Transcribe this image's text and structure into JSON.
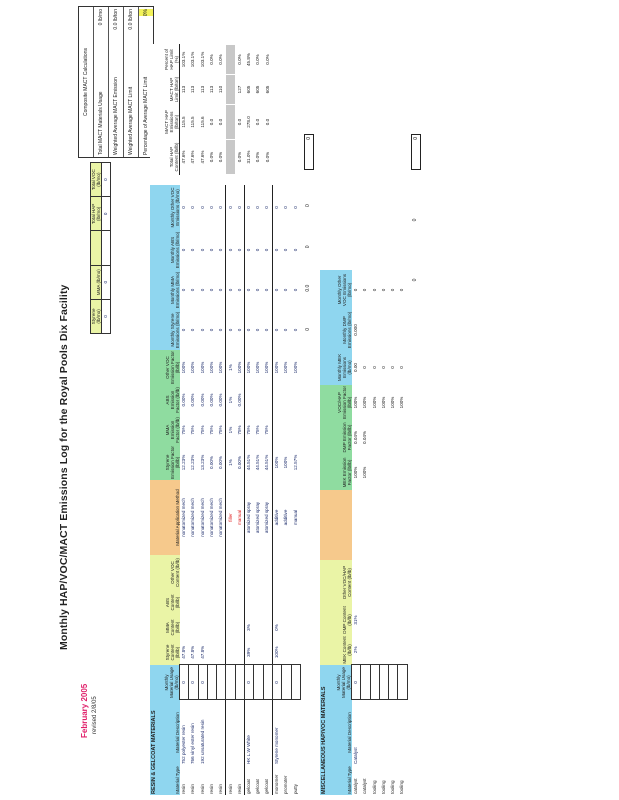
{
  "header": {
    "date": "February 2005",
    "revised": "revised 2/8/05",
    "title": "Monthly HAP/VOC/MACT Emissions Log for the Royal Pools Dix Facility"
  },
  "summary": {
    "headers": [
      "Styrene (lb/mo)",
      "MMA (lb/mo)",
      "",
      "Total HAP (lb/mo)",
      "Total VOC (lb/mo)"
    ],
    "values": [
      "0",
      "0",
      "",
      "0",
      "0"
    ]
  },
  "composite": {
    "title": "Composite MACT Calculations",
    "rows": [
      {
        "label": "Total MACT Materials Usage",
        "value": "0 lb/mo"
      },
      {
        "label": "Weighted Average MACT Emission",
        "value": "0.0 lb/ton"
      },
      {
        "label": "Weighted Average MACT Limit",
        "value": "0.0 lb/ton"
      },
      {
        "label": "Percentage of Average MACT Limit",
        "value": "0%"
      }
    ]
  },
  "resin": {
    "section": "RESIN & GELCOAT MATERIALS",
    "headers": [
      "Material Type",
      "Material Description",
      "Monthly Material Usage (lb/mo)",
      "Styrene Content (lb/lb)",
      "MMA Content (lb/lb)",
      "ABS Content (lb/lb)",
      "Other VOC Content (lb/lb)",
      "Material Application Method",
      "Styrene Emission Factor (lb/lb)",
      "MMA Emission Factor (lb/lb)",
      "ABS Emission Factor (lb/lb)",
      "Other VOC Emission Factor (lb/lb)",
      "Monthly Styrene Emissions (lb/mo)",
      "Monthly MMA Emissions (lb/mo)",
      "Monthly ABS Emissions (lb/mo)",
      "Monthly Other VOC Emissions (lb/mo)"
    ],
    "mact_headers": [
      "Total HAP Content (lb/lb)",
      "MACT HAP Emissions (lb/ton)",
      "MACT HAP Limit (lb/ton)",
      "Percent of HAP Limit (%)"
    ],
    "rows": [
      [
        "resin",
        "752 polyester resin",
        "0",
        "47.8%",
        "",
        "",
        "",
        "nonatomized mech",
        "12.23%",
        "75%",
        "0.00%",
        "100%",
        "0",
        "0",
        "0",
        "0",
        "47.6%",
        "115.5",
        "113",
        "103.1%"
      ],
      [
        "resin",
        "766 vinyl ester resin",
        "0",
        "47.8%",
        "",
        "",
        "",
        "nonatomized mech",
        "12.23%",
        "75%",
        "0.00%",
        "100%",
        "0",
        "0",
        "0",
        "0",
        "47.6%",
        "115.5",
        "113",
        "103.1%"
      ],
      [
        "resin",
        "192 unsaturated resin",
        "0",
        "47.8%",
        "",
        "",
        "",
        "nonatomized mech",
        "13.23%",
        "75%",
        "0.00%",
        "100%",
        "0",
        "0",
        "0",
        "0",
        "47.6%",
        "115.6",
        "113",
        "103.1%"
      ],
      [
        "resin",
        "",
        "",
        "",
        "",
        "",
        "",
        "nonatomized mech",
        "0.00%",
        "75%",
        "0.00%",
        "100%",
        "0",
        "0",
        "0",
        "0",
        "0.0%",
        "0.0",
        "113",
        "0.0%"
      ],
      [
        "resin",
        "",
        "",
        "",
        "",
        "",
        "",
        "nonatomized mech",
        "0.00%",
        "75%",
        "0.00%",
        "100%",
        "0",
        "0",
        "0",
        "0",
        "0.0%",
        "0.0",
        "110",
        "0.0%"
      ],
      [
        "resin",
        "",
        "",
        "",
        "",
        "",
        "",
        "filler",
        "1%",
        "1%",
        "1%",
        "1%",
        "0",
        "0",
        "0",
        "0",
        "",
        "",
        "",
        ""
      ],
      [
        "resin",
        "",
        "",
        "",
        "",
        "",
        "",
        "manual",
        "0.00%",
        "75%",
        "0.00%",
        "100%",
        "0",
        "0",
        "0",
        "0",
        "0.0%",
        "0.0",
        "127",
        "0.0%"
      ],
      [
        "gelcoat",
        "HK L.W White",
        "0",
        "39%",
        "3%",
        "",
        "",
        "atomized spray",
        "44.51%",
        "75%",
        "",
        "100%",
        "0",
        "0",
        "0",
        "0",
        "31.0%",
        "278.0",
        "605",
        "45.8%"
      ],
      [
        "gelcoat",
        "",
        "",
        "",
        "",
        "",
        "",
        "atomized spray",
        "44.51%",
        "75%",
        "",
        "100%",
        "0",
        "0",
        "0",
        "0",
        "0.0%",
        "0.0",
        "605",
        "0.0%"
      ],
      [
        "gelcoat",
        "",
        "",
        "",
        "",
        "",
        "",
        "atomized spray",
        "44.51%",
        "75%",
        "",
        "100%",
        "0",
        "0",
        "0",
        "0",
        "0.0%",
        "0.0",
        "605",
        "0.0%"
      ],
      [
        "monomer",
        "Styrene monomer",
        "0",
        "100%",
        "0%",
        "",
        "",
        "additive",
        "100%",
        "",
        "",
        "100%",
        "0",
        "0",
        "0",
        "0",
        "",
        "",
        "",
        ""
      ],
      [
        "promoter",
        "",
        "",
        "",
        "",
        "",
        "",
        "additive",
        "100%",
        "",
        "",
        "100%",
        "0",
        "0",
        "0",
        "0",
        "",
        "",
        "",
        ""
      ],
      [
        "putty",
        "",
        "",
        "",
        "",
        "",
        "",
        "manual",
        "12.57%",
        "",
        "",
        "100%",
        "0",
        "0",
        "0",
        "0",
        "",
        "",
        "",
        ""
      ]
    ],
    "totals": [
      "0",
      "0.0",
      "0",
      "0"
    ],
    "total_box": "0"
  },
  "misc": {
    "section": "MISCELLANEOUS HAP/VOC MATERIALS",
    "headers": [
      "Material Type",
      "Material Description",
      "Monthly Material Usage (lb/mo)",
      "MEK Content (lb/lb)",
      "DMP Content (lb/lb)",
      "Other VOC/HAP Content (lb/lb)",
      "",
      "MEK Emission Factor (lb/lb)",
      "DMP Emission Factor (lb/lb)",
      "VOC/HAP Emission Factor (lb/lb)",
      "Monthly MEK Emissions (lb/mo)",
      "Monthly DMP Emissions (lb/mo)",
      "Monthly Other VOC Emissions (lb/mo)"
    ],
    "rows": [
      [
        "catalyst",
        "Catalyst",
        "0",
        "2%",
        "31%",
        "",
        "",
        "100%",
        "0.04%",
        "100%",
        "0.00",
        "0.000",
        "0"
      ],
      [
        "catalyst",
        "",
        "",
        "",
        "",
        "",
        "",
        "100%",
        "0.04%",
        "100%",
        "0",
        "",
        "0"
      ],
      [
        "tooling",
        "",
        "",
        "",
        "",
        "",
        "",
        "",
        "",
        "100%",
        "0",
        "",
        "0"
      ],
      [
        "tooling",
        "",
        "",
        "",
        "",
        "",
        "",
        "",
        "",
        "100%",
        "0",
        "",
        "0"
      ],
      [
        "tooling",
        "",
        "",
        "",
        "",
        "",
        "",
        "",
        "",
        "100%",
        "0",
        "",
        "0"
      ],
      [
        "tooling",
        "",
        "",
        "",
        "",
        "",
        "",
        "",
        "",
        "100%",
        "0",
        "",
        "0"
      ]
    ],
    "totals": [
      "0",
      "0"
    ],
    "total_box": "0"
  },
  "colors": {
    "header_blue": "#8fd6ef",
    "content_yellow": "#eaf4a6",
    "method_orange": "#f6c98c",
    "factor_green": "#8fdca0",
    "date_red": "#e0206a",
    "highlight_yellow": "#f3f35a"
  }
}
